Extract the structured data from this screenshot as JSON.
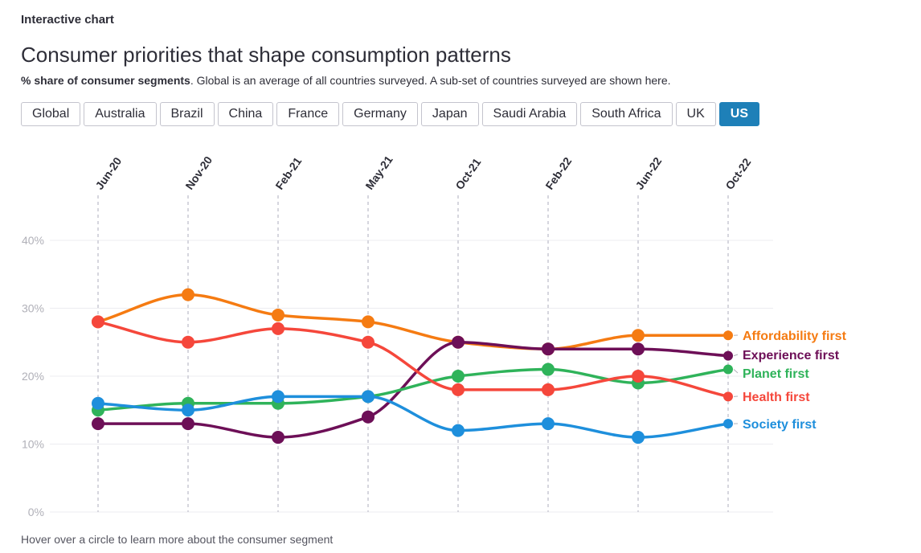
{
  "kicker": "Interactive chart",
  "title": "Consumer priorities that shape consumption patterns",
  "subtitle_bold": "% share of consumer segments",
  "subtitle_rest": ". Global is an average of all countries surveyed. A sub-set of countries surveyed are shown here.",
  "tabs": [
    {
      "label": "Global",
      "active": false
    },
    {
      "label": "Australia",
      "active": false
    },
    {
      "label": "Brazil",
      "active": false
    },
    {
      "label": "China",
      "active": false
    },
    {
      "label": "France",
      "active": false
    },
    {
      "label": "Germany",
      "active": false
    },
    {
      "label": "Japan",
      "active": false
    },
    {
      "label": "Saudi Arabia",
      "active": false
    },
    {
      "label": "South Africa",
      "active": false
    },
    {
      "label": "UK",
      "active": false
    },
    {
      "label": "US",
      "active": true
    }
  ],
  "footer": "Hover over a circle to learn more about the consumer segment",
  "chart_data": {
    "type": "line",
    "title": "Consumer priorities that shape consumption patterns",
    "x": [
      "Jun-20",
      "Nov-20",
      "Feb-21",
      "May-21",
      "Oct-21",
      "Feb-22",
      "Jun-22",
      "Oct-22"
    ],
    "yticks": [
      "0%",
      "10%",
      "20%",
      "30%",
      "40%"
    ],
    "ylim": [
      0,
      40
    ],
    "xlabel": "",
    "ylabel": "",
    "grid": true,
    "legend": "right, end-of-line labels",
    "series": [
      {
        "name": "Affordability first",
        "color": "#f57b12",
        "values": [
          28,
          32,
          29,
          28,
          25,
          24,
          26,
          26
        ]
      },
      {
        "name": "Experience first",
        "color": "#6d0f57",
        "values": [
          13,
          13,
          11,
          14,
          25,
          24,
          24,
          23
        ]
      },
      {
        "name": "Planet first",
        "color": "#2fb35a",
        "values": [
          15,
          16,
          16,
          17,
          20,
          21,
          19,
          21
        ]
      },
      {
        "name": "Health first",
        "color": "#f5473b",
        "values": [
          28,
          25,
          27,
          25,
          18,
          18,
          20,
          17
        ]
      },
      {
        "name": "Society first",
        "color": "#1e8fdc",
        "values": [
          16,
          15,
          17,
          17,
          12,
          13,
          11,
          13
        ]
      }
    ]
  }
}
